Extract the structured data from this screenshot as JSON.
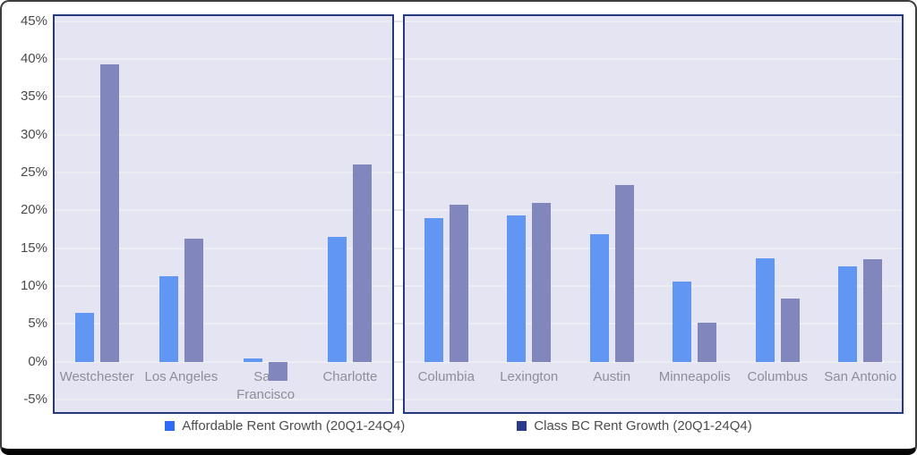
{
  "chart_data": {
    "type": "bar",
    "grid": true,
    "legend_position": "bottom",
    "y_axis": {
      "min": -5,
      "max": 45,
      "step": 5,
      "unit": "%",
      "tick_labels": [
        "45%",
        "40%",
        "35%",
        "30%",
        "25%",
        "20%",
        "15%",
        "10%",
        "5%",
        "0%",
        "-5%"
      ]
    },
    "series": [
      {
        "name": "Affordable Rent Growth (20Q1-24Q4)",
        "bar_color": "#6197F2",
        "legend_color": "#2D6CF6"
      },
      {
        "name": "Class BC Rent Growth (20Q1-24Q4)",
        "bar_color": "#8187BC",
        "legend_color": "#2C3A8C"
      }
    ],
    "panels": [
      {
        "categories": [
          "Westchester",
          "Los Angeles",
          "San Francisco",
          "Charlotte"
        ],
        "series": [
          {
            "name": "Affordable Rent Growth (20Q1-24Q4)",
            "values": [
              6.4,
              11.3,
              0.4,
              16.5
            ]
          },
          {
            "name": "Class BC Rent Growth (20Q1-24Q4)",
            "values": [
              39.3,
              16.2,
              -2.5,
              26.0
            ]
          }
        ]
      },
      {
        "categories": [
          "Columbia",
          "Lexington",
          "Austin",
          "Minneapolis",
          "Columbus",
          "San Antonio"
        ],
        "series": [
          {
            "name": "Affordable Rent Growth (20Q1-24Q4)",
            "values": [
              19.0,
              19.3,
              16.8,
              10.6,
              13.6,
              12.6
            ]
          },
          {
            "name": "Class BC Rent Growth (20Q1-24Q4)",
            "values": [
              20.7,
              21.0,
              23.3,
              5.2,
              8.3,
              13.5
            ]
          }
        ]
      }
    ],
    "colors": {
      "panel_background": "#E4E4F3",
      "panel_border": "#24397E",
      "gridline": "#EDEDF4",
      "gap_gridline": "#E4E4E9",
      "axis_label": "#4A4A4A",
      "category_label": "#8E8E99",
      "legend_text": "#4D4D4D"
    }
  }
}
